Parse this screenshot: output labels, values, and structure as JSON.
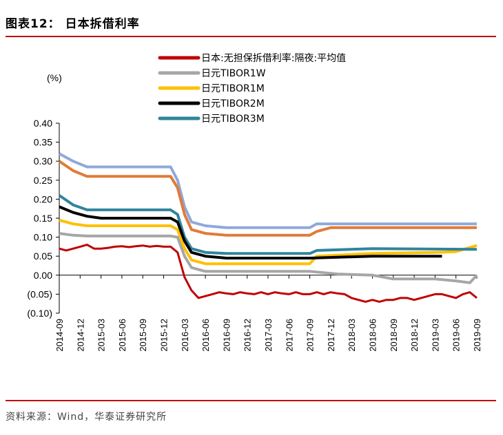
{
  "figure": {
    "title": "图表12：  日本拆借利率",
    "source": "资料来源：Wind，华泰证券研究所"
  },
  "colors": {
    "rule": "#c00000",
    "series": [
      "#c00000",
      "#a6a6a6",
      "#ffc000",
      "#000000",
      "#31849b"
    ],
    "tibor3m_late": "#8ea9db",
    "tibor1m_late": "#e07b39"
  },
  "chart_data": {
    "type": "line",
    "unit_label": "(%)",
    "ylim": [
      -0.1,
      0.4
    ],
    "yticks": [
      0.4,
      0.35,
      0.3,
      0.25,
      0.2,
      0.15,
      0.1,
      0.05,
      0.0,
      -0.05,
      -0.1
    ],
    "ytick_labels": [
      "0.40",
      "0.35",
      "0.30",
      "0.25",
      "0.20",
      "0.15",
      "0.10",
      "0.05",
      "0.00",
      "(0.05)",
      "(0.10)"
    ],
    "xlim": [
      "2014-09",
      "2019-09"
    ],
    "xtick_labels": [
      "2014-09",
      "2014-12",
      "2015-03",
      "2015-06",
      "2015-09",
      "2015-12",
      "2016-03",
      "2016-06",
      "2016-09",
      "2016-12",
      "2017-03",
      "2017-06",
      "2017-09",
      "2017-12",
      "2018-03",
      "2018-06",
      "2018-09",
      "2018-12",
      "2019-03",
      "2019-06",
      "2019-09"
    ],
    "grid": false,
    "legend_position": "top",
    "series": [
      {
        "name": "日本:无担保拆借利率:隔夜:平均值",
        "points": [
          [
            "2014-09",
            0.07
          ],
          [
            "2014-10",
            0.065
          ],
          [
            "2014-11",
            0.07
          ],
          [
            "2014-12",
            0.075
          ],
          [
            "2015-01",
            0.08
          ],
          [
            "2015-02",
            0.07
          ],
          [
            "2015-03",
            0.07
          ],
          [
            "2015-04",
            0.072
          ],
          [
            "2015-05",
            0.075
          ],
          [
            "2015-06",
            0.076
          ],
          [
            "2015-07",
            0.074
          ],
          [
            "2015-08",
            0.076
          ],
          [
            "2015-09",
            0.078
          ],
          [
            "2015-10",
            0.075
          ],
          [
            "2015-11",
            0.077
          ],
          [
            "2015-12",
            0.075
          ],
          [
            "2016-01",
            0.075
          ],
          [
            "2016-02",
            0.06
          ],
          [
            "2016-03",
            -0.005
          ],
          [
            "2016-04",
            -0.04
          ],
          [
            "2016-05",
            -0.06
          ],
          [
            "2016-06",
            -0.055
          ],
          [
            "2016-07",
            -0.05
          ],
          [
            "2016-08",
            -0.045
          ],
          [
            "2016-09",
            -0.048
          ],
          [
            "2016-10",
            -0.05
          ],
          [
            "2016-11",
            -0.045
          ],
          [
            "2016-12",
            -0.048
          ],
          [
            "2017-01",
            -0.05
          ],
          [
            "2017-02",
            -0.045
          ],
          [
            "2017-03",
            -0.05
          ],
          [
            "2017-04",
            -0.045
          ],
          [
            "2017-05",
            -0.048
          ],
          [
            "2017-06",
            -0.05
          ],
          [
            "2017-07",
            -0.045
          ],
          [
            "2017-08",
            -0.05
          ],
          [
            "2017-09",
            -0.05
          ],
          [
            "2017-10",
            -0.045
          ],
          [
            "2017-11",
            -0.05
          ],
          [
            "2017-12",
            -0.045
          ],
          [
            "2018-01",
            -0.048
          ],
          [
            "2018-02",
            -0.05
          ],
          [
            "2018-03",
            -0.06
          ],
          [
            "2018-04",
            -0.065
          ],
          [
            "2018-05",
            -0.07
          ],
          [
            "2018-06",
            -0.065
          ],
          [
            "2018-07",
            -0.07
          ],
          [
            "2018-08",
            -0.065
          ],
          [
            "2018-09",
            -0.065
          ],
          [
            "2018-10",
            -0.06
          ],
          [
            "2018-11",
            -0.06
          ],
          [
            "2018-12",
            -0.065
          ],
          [
            "2019-01",
            -0.06
          ],
          [
            "2019-02",
            -0.055
          ],
          [
            "2019-03",
            -0.05
          ],
          [
            "2019-04",
            -0.05
          ],
          [
            "2019-05",
            -0.055
          ],
          [
            "2019-06",
            -0.06
          ],
          [
            "2019-07",
            -0.05
          ],
          [
            "2019-08",
            -0.045
          ],
          [
            "2019-09",
            -0.06
          ]
        ]
      },
      {
        "name": "日元TIBOR1W",
        "points": [
          [
            "2014-09",
            0.11
          ],
          [
            "2014-11",
            0.105
          ],
          [
            "2015-01",
            0.103
          ],
          [
            "2015-06",
            0.103
          ],
          [
            "2016-01",
            0.103
          ],
          [
            "2016-02",
            0.1
          ],
          [
            "2016-03",
            0.05
          ],
          [
            "2016-04",
            0.02
          ],
          [
            "2016-06",
            0.01
          ],
          [
            "2016-12",
            0.01
          ],
          [
            "2017-09",
            0.01
          ],
          [
            "2018-01",
            0.003
          ],
          [
            "2018-06",
            0.0
          ],
          [
            "2018-09",
            -0.01
          ],
          [
            "2018-12",
            -0.01
          ],
          [
            "2019-03",
            -0.01
          ],
          [
            "2019-06",
            -0.015
          ],
          [
            "2019-08",
            -0.02
          ],
          [
            "2019-09",
            0.0
          ]
        ]
      },
      {
        "name": "日元TIBOR1M",
        "points": [
          [
            "2014-09",
            0.145
          ],
          [
            "2014-11",
            0.135
          ],
          [
            "2015-01",
            0.13
          ],
          [
            "2016-01",
            0.13
          ],
          [
            "2016-02",
            0.12
          ],
          [
            "2016-03",
            0.07
          ],
          [
            "2016-04",
            0.04
          ],
          [
            "2016-06",
            0.03
          ],
          [
            "2017-09",
            0.03
          ],
          [
            "2017-10",
            0.05
          ],
          [
            "2018-06",
            0.057
          ],
          [
            "2019-03",
            0.06
          ],
          [
            "2019-06",
            0.062
          ],
          [
            "2019-09",
            0.078
          ]
        ]
      },
      {
        "name": "日元TIBOR2M",
        "points": [
          [
            "2014-09",
            0.18
          ],
          [
            "2014-11",
            0.165
          ],
          [
            "2015-01",
            0.155
          ],
          [
            "2015-03",
            0.15
          ],
          [
            "2016-01",
            0.15
          ],
          [
            "2016-02",
            0.14
          ],
          [
            "2016-03",
            0.09
          ],
          [
            "2016-04",
            0.06
          ],
          [
            "2016-06",
            0.05
          ],
          [
            "2016-09",
            0.045
          ],
          [
            "2017-09",
            0.045
          ],
          [
            "2018-06",
            0.05
          ],
          [
            "2019-04",
            0.05
          ]
        ]
      },
      {
        "name": "日元TIBOR3M",
        "points": [
          [
            "2014-09",
            0.21
          ],
          [
            "2014-11",
            0.185
          ],
          [
            "2015-01",
            0.172
          ],
          [
            "2016-01",
            0.172
          ],
          [
            "2016-02",
            0.16
          ],
          [
            "2016-03",
            0.1
          ],
          [
            "2016-04",
            0.07
          ],
          [
            "2016-06",
            0.06
          ],
          [
            "2016-09",
            0.057
          ],
          [
            "2017-09",
            0.057
          ],
          [
            "2017-10",
            0.065
          ],
          [
            "2018-06",
            0.07
          ],
          [
            "2019-09",
            0.068
          ]
        ]
      }
    ],
    "overlay_series": [
      {
        "points": [
          [
            "2014-09",
            0.32
          ],
          [
            "2014-11",
            0.3
          ],
          [
            "2015-01",
            0.285
          ],
          [
            "2016-01",
            0.285
          ],
          [
            "2016-02",
            0.25
          ],
          [
            "2016-03",
            0.18
          ],
          [
            "2016-04",
            0.14
          ],
          [
            "2016-06",
            0.13
          ],
          [
            "2016-09",
            0.125
          ],
          [
            "2017-09",
            0.125
          ],
          [
            "2017-10",
            0.135
          ],
          [
            "2019-09",
            0.135
          ]
        ]
      },
      {
        "points": [
          [
            "2014-09",
            0.3
          ],
          [
            "2014-11",
            0.275
          ],
          [
            "2015-01",
            0.26
          ],
          [
            "2016-01",
            0.26
          ],
          [
            "2016-02",
            0.23
          ],
          [
            "2016-03",
            0.16
          ],
          [
            "2016-04",
            0.12
          ],
          [
            "2016-06",
            0.11
          ],
          [
            "2016-09",
            0.105
          ],
          [
            "2017-09",
            0.105
          ],
          [
            "2017-10",
            0.115
          ],
          [
            "2017-12",
            0.125
          ],
          [
            "2019-09",
            0.125
          ]
        ]
      }
    ]
  }
}
